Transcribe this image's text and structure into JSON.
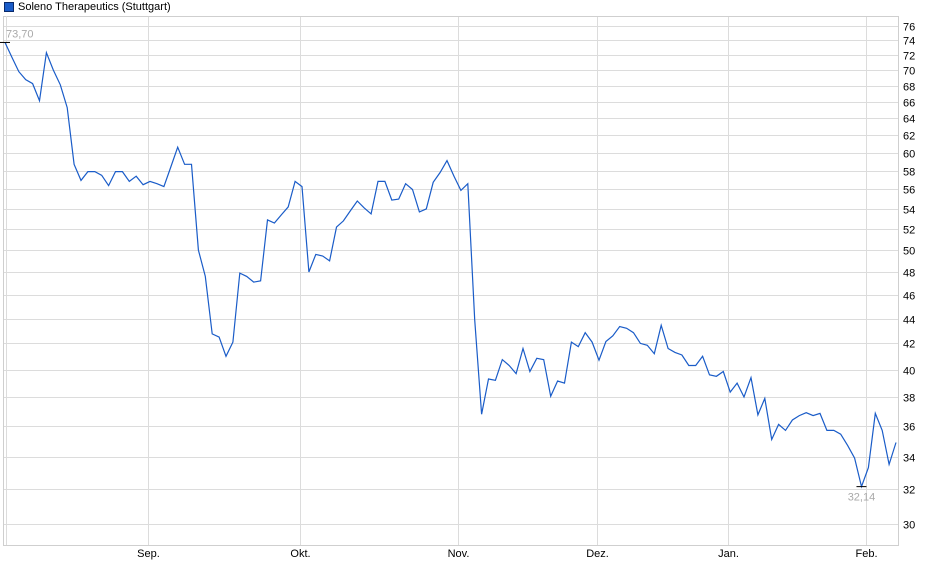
{
  "legend": {
    "label": "Soleno Therapeutics (Stuttgart)",
    "color": "#1a5cc8"
  },
  "chart_data": {
    "type": "line",
    "title": "",
    "xlabel": "",
    "ylabel": "",
    "y_scale": "log",
    "ylim": [
      29,
      77.5
    ],
    "y_ticks": [
      30,
      32,
      34,
      36,
      38,
      40,
      42,
      44,
      46,
      48,
      50,
      52,
      54,
      56,
      58,
      60,
      62,
      64,
      66,
      68,
      70,
      72,
      74,
      76
    ],
    "y_axis_position": "right",
    "grid": true,
    "legend_position": "top-left",
    "x_ticks": [
      {
        "label": "Sep.",
        "date": "09-01"
      },
      {
        "label": "Okt.",
        "date": "10-01"
      },
      {
        "label": "Nov.",
        "date": "11-03"
      },
      {
        "label": "Dez.",
        "date": "12-01"
      },
      {
        "label": "Jan.",
        "date": "01-05"
      },
      {
        "label": "Feb.",
        "date": "02-02"
      }
    ],
    "annotations": {
      "max": {
        "label": "73,70",
        "value": 73.7,
        "date": "08-01"
      },
      "min": {
        "label": "32,14",
        "value": 32.14,
        "date": "01-30"
      }
    },
    "series": [
      {
        "name": "Soleno Therapeutics (Stuttgart)",
        "color": "#1a5cc8",
        "x": [
          "08-01",
          "08-04",
          "08-05",
          "08-06",
          "08-07",
          "08-08",
          "08-11",
          "08-12",
          "08-13",
          "08-14",
          "08-15",
          "08-18",
          "08-19",
          "08-20",
          "08-21",
          "08-22",
          "08-25",
          "08-26",
          "08-27",
          "08-28",
          "08-29",
          "09-01",
          "09-02",
          "09-03",
          "09-04",
          "09-05",
          "09-08",
          "09-09",
          "09-10",
          "09-11",
          "09-12",
          "09-15",
          "09-16",
          "09-17",
          "09-18",
          "09-19",
          "09-22",
          "09-23",
          "09-24",
          "09-25",
          "09-26",
          "09-29",
          "09-30",
          "10-01",
          "10-02",
          "10-03",
          "10-06",
          "10-07",
          "10-08",
          "10-09",
          "10-10",
          "10-13",
          "10-14",
          "10-15",
          "10-16",
          "10-17",
          "10-20",
          "10-21",
          "10-22",
          "10-23",
          "10-24",
          "10-27",
          "10-28",
          "10-29",
          "10-30",
          "10-31",
          "11-03",
          "11-04",
          "11-05",
          "11-06",
          "11-07",
          "11-10",
          "11-11",
          "11-12",
          "11-13",
          "11-14",
          "11-17",
          "11-18",
          "11-19",
          "11-20",
          "11-21",
          "11-24",
          "11-25",
          "11-26",
          "11-27",
          "11-28",
          "12-01",
          "12-02",
          "12-03",
          "12-04",
          "12-05",
          "12-08",
          "12-09",
          "12-10",
          "12-11",
          "12-12",
          "12-15",
          "12-16",
          "12-17",
          "12-18",
          "12-19",
          "12-22",
          "12-23",
          "12-29",
          "12-30",
          "01-05",
          "01-06",
          "01-07",
          "01-08",
          "01-09",
          "01-12",
          "01-13",
          "01-14",
          "01-15",
          "01-16",
          "01-19",
          "01-20",
          "01-21",
          "01-22",
          "01-23",
          "01-26",
          "01-27",
          "01-28",
          "01-29",
          "01-30",
          "02-02",
          "02-03",
          "02-04",
          "02-05",
          "02-06"
        ],
        "values": [
          73.7,
          71.7,
          69.8,
          68.75,
          68.25,
          66.1,
          72.3,
          70.0,
          68.1,
          65.25,
          58.7,
          56.95,
          57.9,
          57.9,
          57.5,
          56.4,
          57.9,
          57.9,
          56.85,
          57.4,
          56.5,
          56.85,
          56.6,
          56.3,
          58.4,
          60.6,
          58.7,
          58.7,
          50.0,
          47.6,
          42.75,
          42.5,
          41.0,
          42.1,
          47.9,
          47.6,
          47.1,
          47.2,
          52.9,
          52.6,
          53.4,
          54.2,
          56.85,
          56.3,
          48.0,
          49.6,
          49.45,
          49.0,
          52.2,
          52.8,
          53.8,
          54.8,
          54.1,
          53.5,
          56.85,
          56.85,
          54.9,
          55.0,
          56.6,
          56.0,
          53.7,
          54.0,
          56.75,
          57.8,
          59.1,
          57.4,
          55.9,
          56.6,
          43.9,
          36.8,
          39.3,
          39.2,
          40.75,
          40.3,
          39.7,
          41.6,
          39.85,
          40.85,
          40.75,
          38.05,
          39.15,
          39.0,
          42.1,
          41.75,
          42.85,
          42.1,
          40.7,
          42.15,
          42.6,
          43.35,
          43.2,
          42.85,
          42.0,
          41.85,
          41.2,
          43.45,
          41.6,
          41.3,
          41.1,
          40.3,
          40.3,
          41.0,
          39.6,
          39.5,
          39.85,
          38.35,
          39.0,
          38.0,
          39.4,
          36.75,
          37.9,
          35.1,
          36.1,
          35.7,
          36.4,
          36.7,
          36.9,
          36.7,
          36.85,
          35.7,
          35.7,
          35.45,
          34.7,
          33.9,
          32.14,
          33.3,
          36.85,
          35.7,
          33.5,
          34.9
        ]
      }
    ]
  }
}
